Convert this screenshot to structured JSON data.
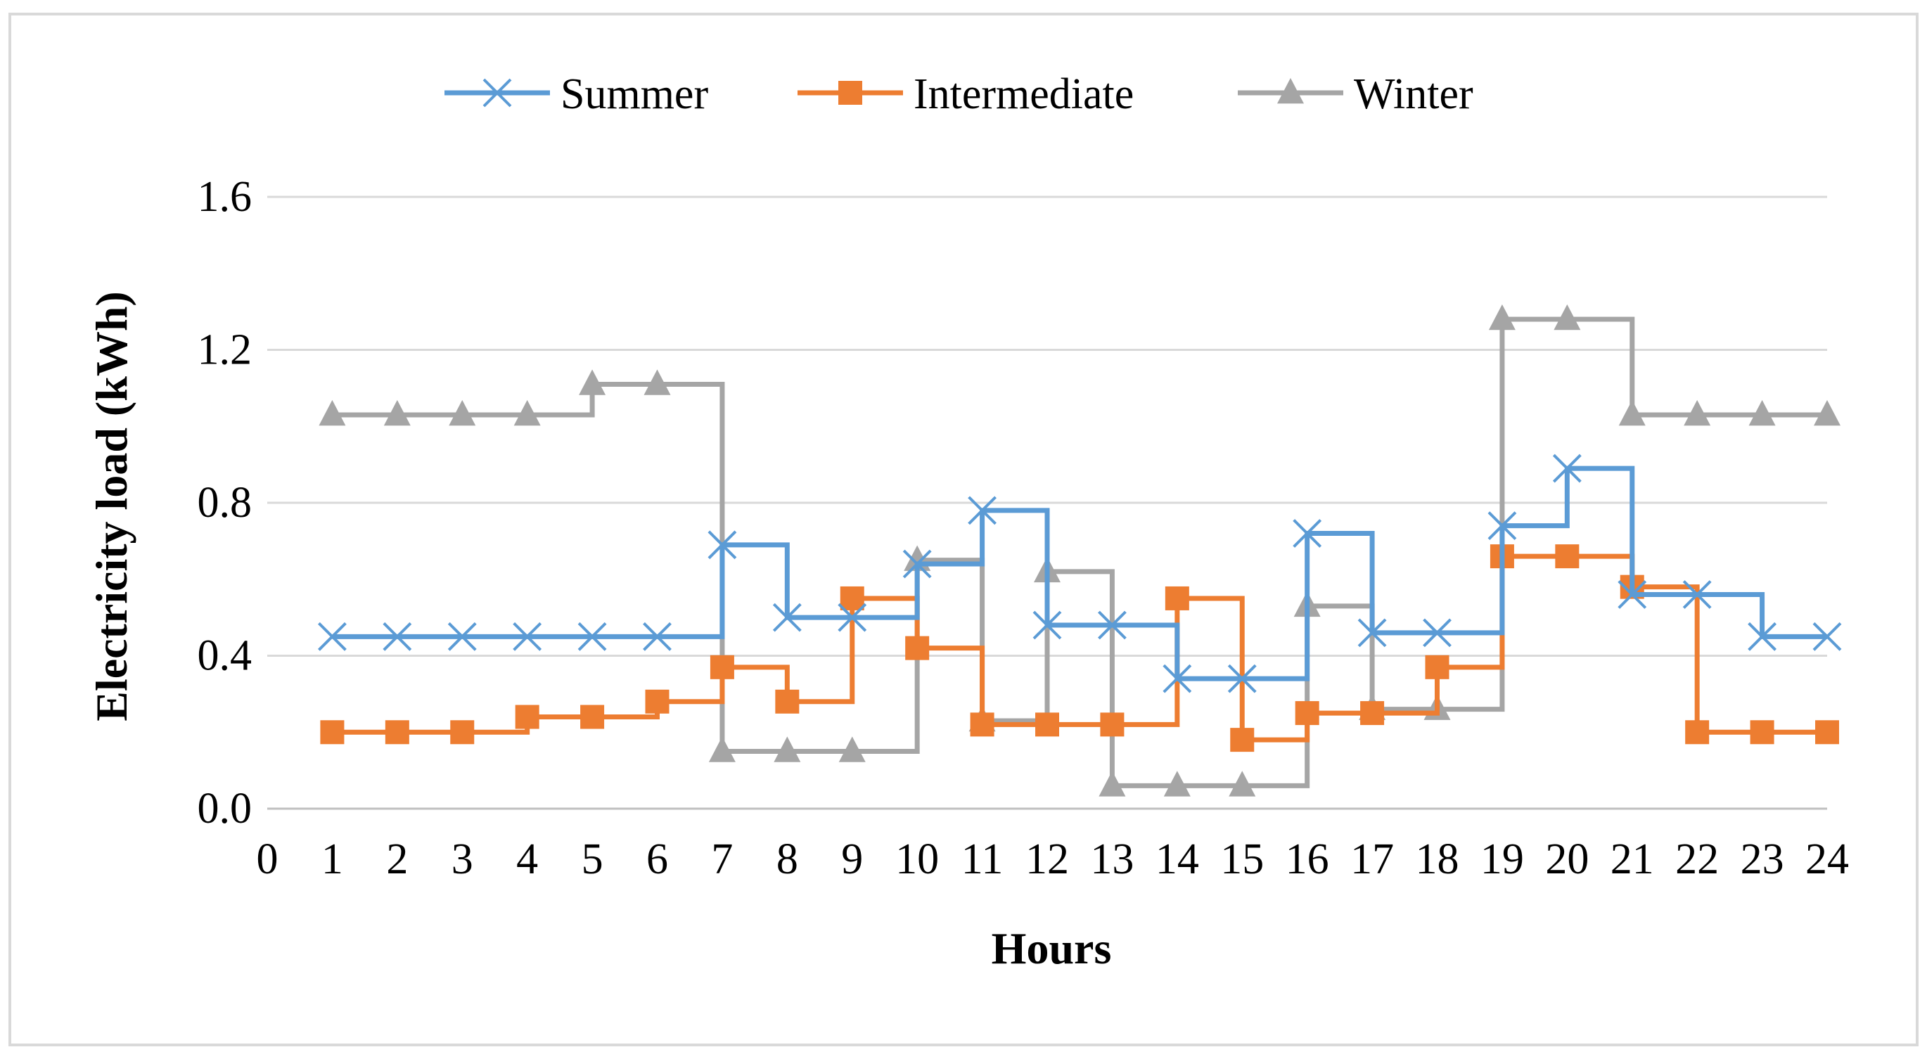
{
  "chart_data": {
    "type": "line",
    "step": true,
    "title": "",
    "xlabel": "Hours",
    "ylabel": "Electricity  load (kWh)",
    "xlim": [
      0,
      24
    ],
    "ylim": [
      0,
      1.6
    ],
    "x_ticks": [
      "0",
      "1",
      "2",
      "3",
      "4",
      "5",
      "6",
      "7",
      "8",
      "9",
      "10",
      "11",
      "12",
      "13",
      "14",
      "15",
      "16",
      "17",
      "18",
      "19",
      "20",
      "21",
      "22",
      "23",
      "24"
    ],
    "y_ticks": [
      "0.0",
      "0.4",
      "0.8",
      "1.2",
      "1.6"
    ],
    "y_tick_values": [
      0,
      0.4,
      0.8,
      1.2,
      1.6
    ],
    "grid": true,
    "legend_position": "top",
    "x": [
      1,
      2,
      3,
      4,
      5,
      6,
      7,
      8,
      9,
      10,
      11,
      12,
      13,
      14,
      15,
      16,
      17,
      18,
      19,
      20,
      21,
      22,
      23,
      24
    ],
    "series": [
      {
        "name": "Summer",
        "color": "#5B9BD5",
        "marker": "x",
        "values": [
          0.45,
          0.45,
          0.45,
          0.45,
          0.45,
          0.45,
          0.69,
          0.5,
          0.5,
          0.64,
          0.78,
          0.48,
          0.48,
          0.34,
          0.34,
          0.72,
          0.46,
          0.46,
          0.74,
          0.89,
          0.56,
          0.56,
          0.45,
          0.45
        ]
      },
      {
        "name": "Intermediate",
        "color": "#ED7D31",
        "marker": "square",
        "values": [
          0.2,
          0.2,
          0.2,
          0.24,
          0.24,
          0.28,
          0.37,
          0.28,
          0.55,
          0.42,
          0.22,
          0.22,
          0.22,
          0.55,
          0.18,
          0.25,
          0.25,
          0.37,
          0.66,
          0.66,
          0.58,
          0.2,
          0.2,
          0.2
        ]
      },
      {
        "name": "Winter",
        "color": "#A5A5A5",
        "marker": "triangle",
        "values": [
          1.03,
          1.03,
          1.03,
          1.03,
          1.11,
          1.11,
          0.15,
          0.15,
          0.15,
          0.65,
          0.23,
          0.62,
          0.06,
          0.06,
          0.06,
          0.53,
          0.26,
          0.26,
          1.28,
          1.28,
          1.03,
          1.03,
          1.03,
          1.03
        ]
      }
    ]
  }
}
